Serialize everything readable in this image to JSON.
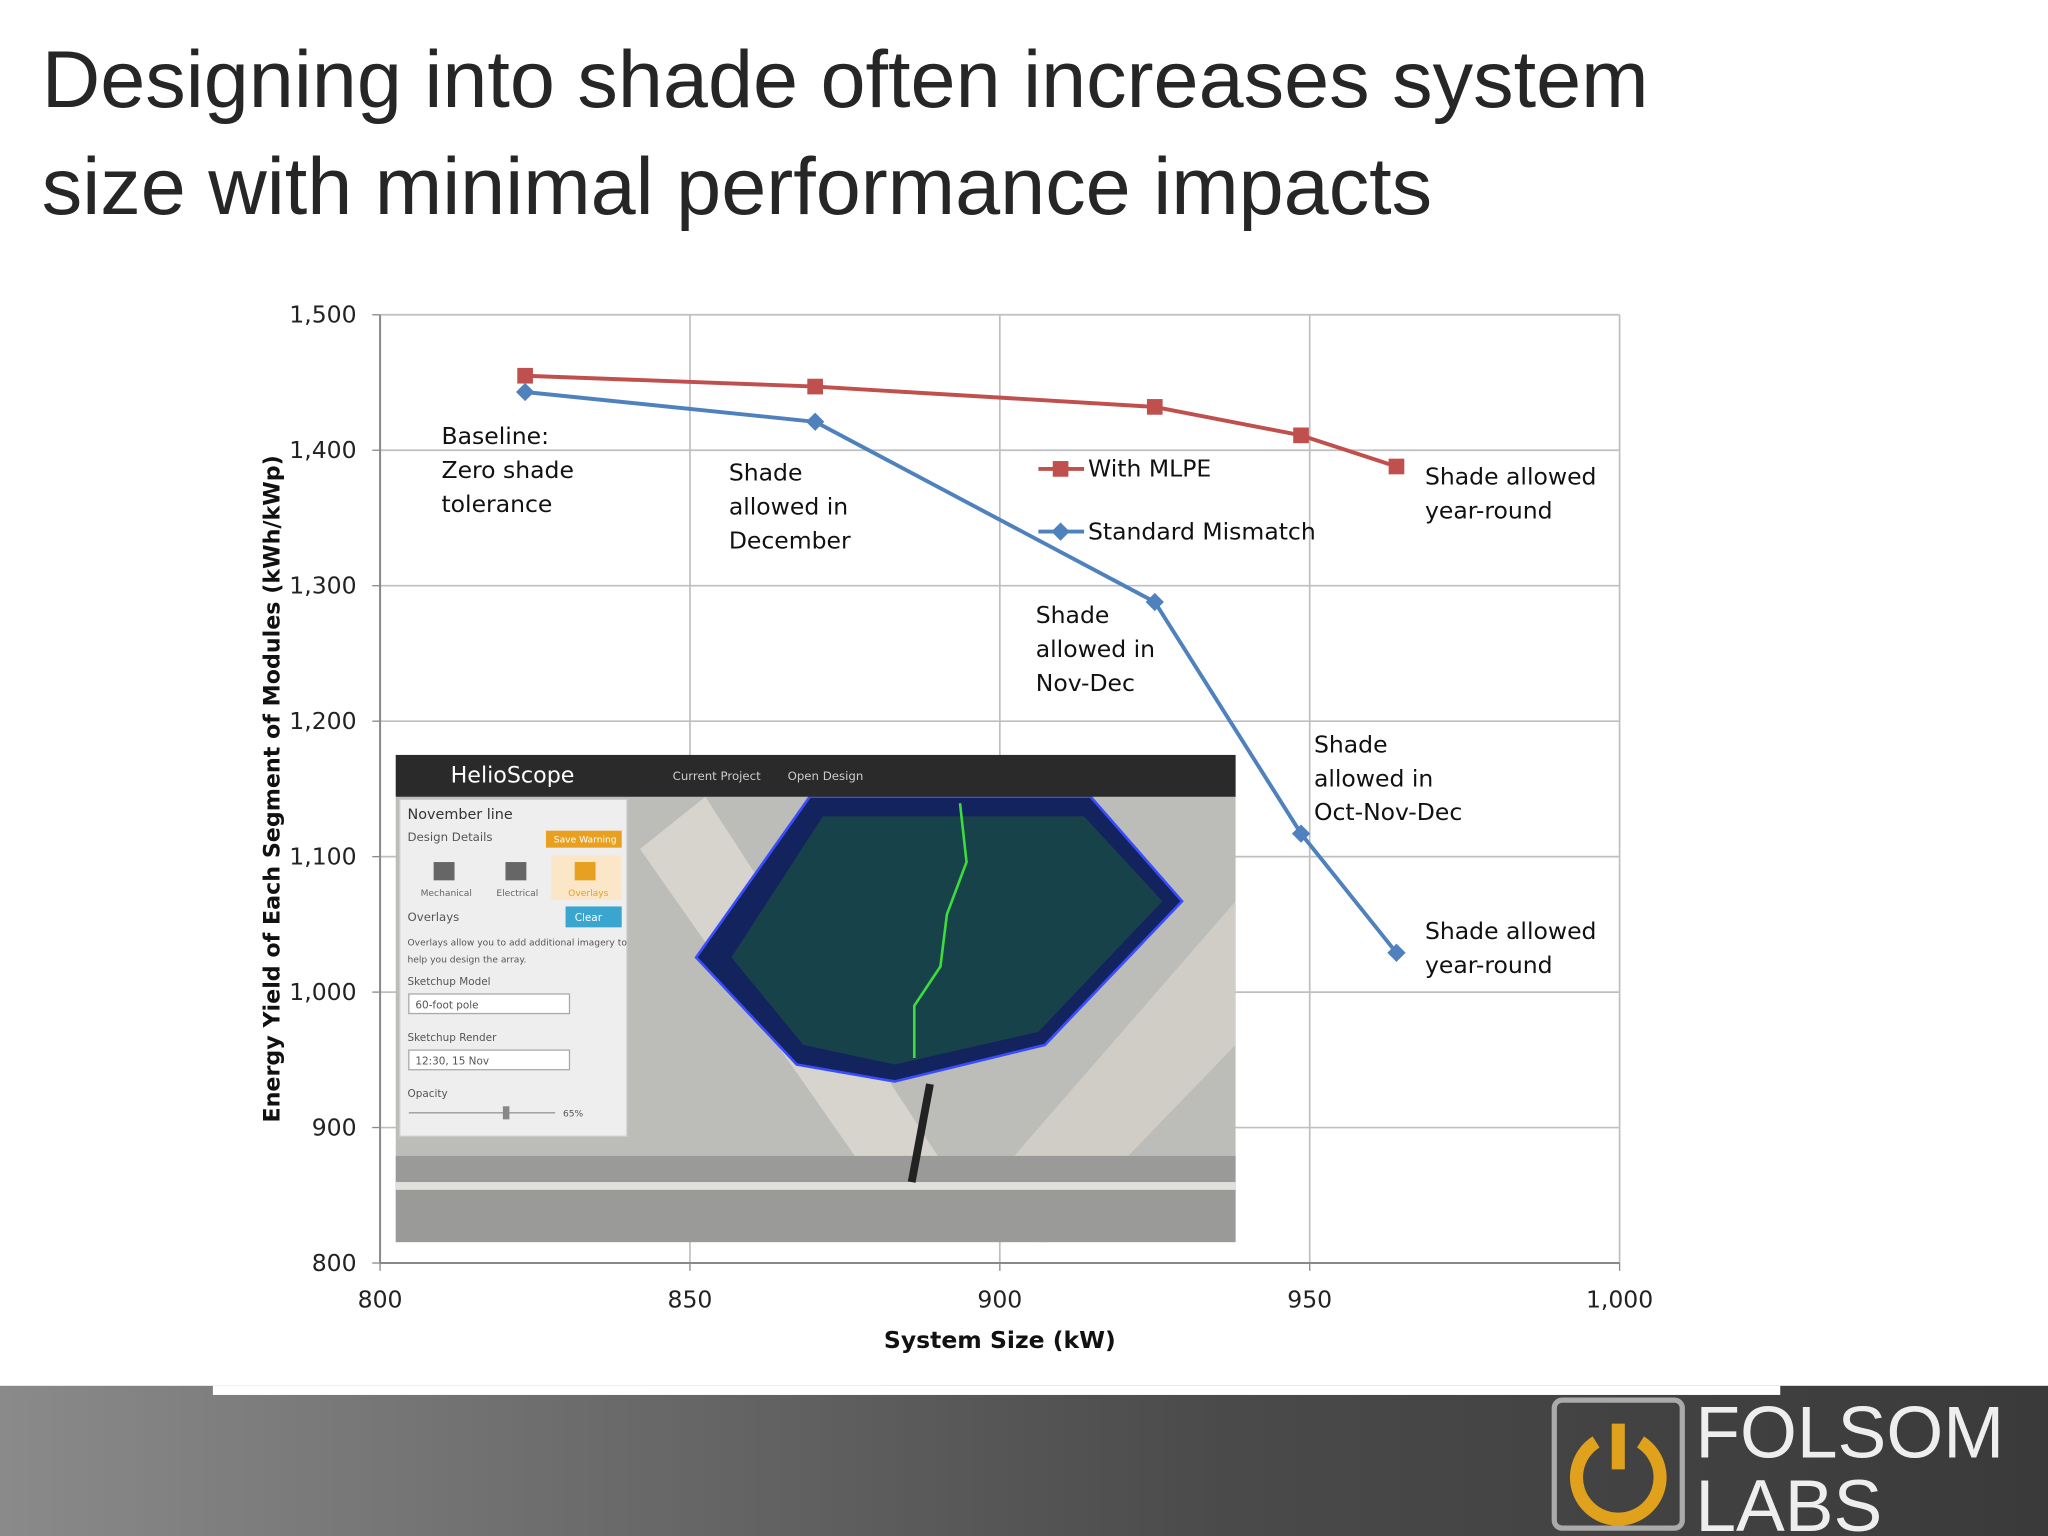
{
  "title": "Designing into shade often increases system size with minimal performance impacts",
  "chart_data": {
    "type": "line",
    "x_label": "System Size (kW)",
    "y_label": "Energy Yield of Each Segment of Modules (kWh/kWp)",
    "xlim": [
      800,
      1000
    ],
    "ylim": [
      800,
      1500
    ],
    "xticks": [
      800,
      850,
      900,
      950,
      {
        "value": 1000,
        "label": "1,000"
      }
    ],
    "yticks": [
      800,
      900,
      {
        "value": 1000,
        "label": "1,000"
      },
      {
        "value": 1100,
        "label": "1,100"
      },
      {
        "value": 1200,
        "label": "1,200"
      },
      {
        "value": 1300,
        "label": "1,300"
      },
      {
        "value": 1400,
        "label": "1,400"
      },
      {
        "value": 1500,
        "label": "1,500"
      }
    ],
    "grid": true,
    "x": [
      823.4,
      870.2,
      925,
      948.6,
      964
    ],
    "series": [
      {
        "name": "With MLPE",
        "color": "#c0504d",
        "marker": "square",
        "values": [
          1455,
          1447,
          1432,
          1411,
          1388
        ]
      },
      {
        "name": "Standard Mismatch",
        "color": "#4f81bd",
        "marker": "diamond",
        "values": [
          1443,
          1421,
          1288,
          1117,
          1029
        ]
      }
    ],
    "annotations": [
      [
        "Baseline:",
        "Zero shade",
        "tolerance"
      ],
      [
        "Shade",
        "allowed in",
        "December"
      ],
      [
        "Shade",
        "allowed in",
        "Nov-Dec"
      ],
      [
        "Shade",
        "allowed in",
        "Oct-Nov-Dec"
      ],
      [
        "Shade allowed",
        "year-round"
      ],
      [
        "Shade allowed",
        "year-round"
      ]
    ]
  },
  "inset": {
    "app": "HelioScope",
    "nav": [
      "Current Project",
      "Open Design"
    ],
    "design": "November line",
    "details": "Design Details",
    "warning": "Save Warning",
    "tabs": [
      "Mechanical",
      "Electrical",
      "Overlays"
    ],
    "section": "Overlays",
    "clear": "Clear",
    "help": [
      "Overlays allow you to add additional imagery to",
      "help you design the array."
    ],
    "model_label": "Sketchup Model",
    "model": "60-foot pole",
    "render_label": "Sketchup Render",
    "render": "12:30, 15 Nov",
    "opacity_label": "Opacity",
    "opacity": "65%"
  },
  "logo": [
    "FOLSOM",
    "LABS"
  ]
}
